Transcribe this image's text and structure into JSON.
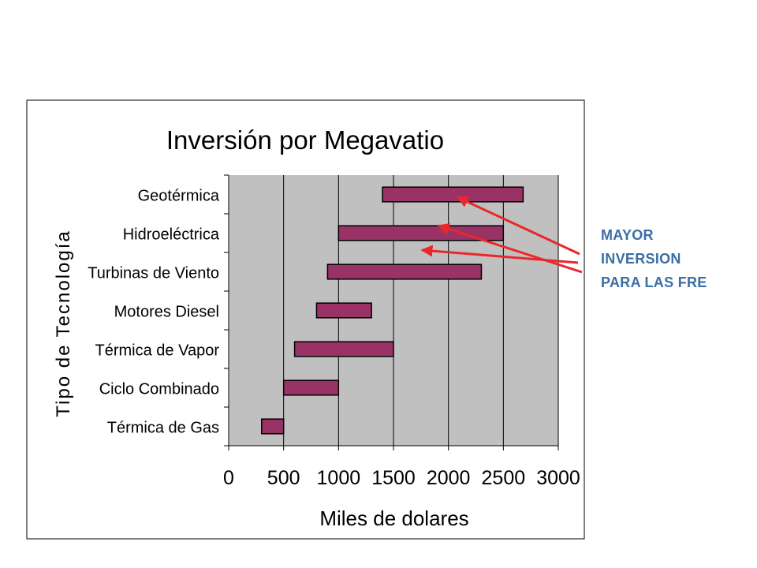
{
  "chart_data": {
    "type": "bar",
    "orientation": "horizontal-floating",
    "title": "Inversión por Megavatio",
    "xlabel": "Miles de dolares",
    "ylabel": "Tipo de Tecnología",
    "xlim": [
      0,
      3000
    ],
    "xticks": [
      "0",
      "500",
      "1000",
      "1500",
      "2000",
      "2500",
      "3000"
    ],
    "categories": [
      "Geotérmica",
      "Hidroeléctrica",
      "Turbinas de Viento",
      "Motores Diesel",
      "Térmica de Vapor",
      "Ciclo Combinado",
      "Térmica de Gas"
    ],
    "ranges": [
      [
        1400,
        2680
      ],
      [
        1000,
        2500
      ],
      [
        900,
        2300
      ],
      [
        800,
        1300
      ],
      [
        600,
        1500
      ],
      [
        500,
        1000
      ],
      [
        300,
        500
      ]
    ],
    "grid": "vertical",
    "legend": "none",
    "colors": {
      "bar": "#993366",
      "plot_bg": "#c0c0c0",
      "arrow": "#e8282b"
    }
  },
  "annotation": {
    "lines": [
      "MAYOR",
      "INVERSION",
      "PARA LAS FRE"
    ],
    "color": "#3a6ea5",
    "points_to": [
      "Geotérmica",
      "Hidroeléctrica",
      "Turbinas de Viento"
    ]
  }
}
